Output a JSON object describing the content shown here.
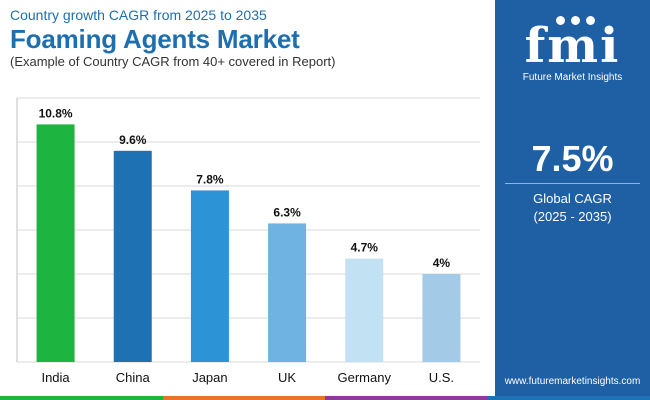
{
  "header": {
    "subtitle": "Country growth CAGR from 2025 to 2035",
    "title": "Foaming Agents Market",
    "note": "(Example of Country CAGR from 40+ covered in Report)"
  },
  "chart_data": {
    "type": "bar",
    "categories": [
      "India",
      "China",
      "Japan",
      "UK",
      "Germany",
      "U.S."
    ],
    "values": [
      10.8,
      9.6,
      7.8,
      6.3,
      4.7,
      4.0
    ],
    "data_labels": [
      "10.8%",
      "9.6%",
      "7.8%",
      "6.3%",
      "4.7%",
      "4%"
    ],
    "colors": [
      "#1db53f",
      "#1e72b4",
      "#2b93d6",
      "#6fb3e2",
      "#c2e1f3",
      "#a3cbe7"
    ],
    "ylim": [
      0,
      12
    ],
    "grid": true,
    "xlabel": "",
    "ylabel": ""
  },
  "panel": {
    "logo_text": "fmi",
    "logo_sub": "Future Market Insights",
    "cagr_value": "7.5%",
    "cagr_label": "Global CAGR",
    "cagr_period": "(2025 - 2035)",
    "website": "www.futuremarketinsights.com",
    "background": "#1f5fa4"
  },
  "bottom_bar_colors": [
    "#1db53f",
    "#e8742c",
    "#8e3b98",
    "#1e72b4"
  ]
}
